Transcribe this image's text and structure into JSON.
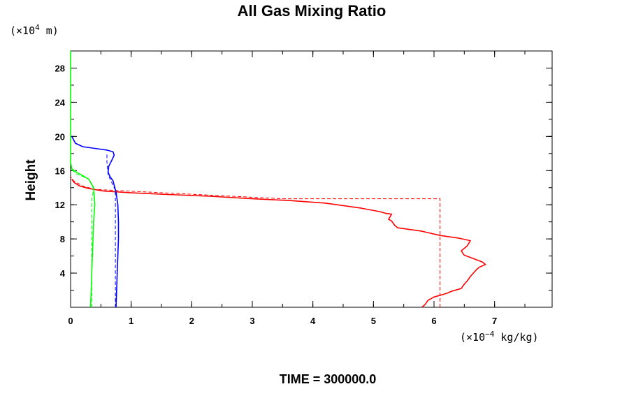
{
  "chart_data": {
    "type": "line",
    "title": "All Gas Mixing Ratio",
    "ylabel": "Height",
    "y_unit_prefix": "(×10",
    "y_unit_exp": "4",
    "y_unit_suffix": " m)",
    "x_unit_prefix": "(×10",
    "x_unit_exp": "−4",
    "x_unit_suffix": " kg/kg)",
    "footer": "TIME = 300000.0",
    "xlim": [
      0,
      7.95
    ],
    "ylim": [
      0,
      30
    ],
    "x_ticks": [
      0,
      1,
      2,
      3,
      4,
      5,
      6,
      7
    ],
    "y_ticks": [
      4,
      8,
      12,
      16,
      20,
      24,
      28
    ],
    "y_minor_step": 2,
    "x_minor_step": 0.5,
    "series": [
      {
        "color": "#ff0000",
        "style": "solid",
        "x": [
          5.8,
          5.85,
          5.9,
          6.0,
          6.2,
          6.3,
          6.45,
          6.5,
          6.55,
          6.6,
          6.65,
          6.7,
          6.75,
          6.85,
          6.8,
          6.65,
          6.5,
          6.45,
          6.55,
          6.6,
          6.4,
          6.1,
          5.8,
          5.4,
          5.35,
          5.3,
          5.25,
          5.3,
          5.2,
          5.1,
          4.8,
          4.4,
          4.2,
          3.6,
          3.0,
          2.3,
          1.6,
          1.0,
          0.55,
          0.3,
          0.15,
          0.06,
          0.02
        ],
        "y": [
          0.0,
          0.3,
          0.8,
          1.2,
          1.6,
          1.9,
          2.2,
          2.7,
          3.1,
          3.6,
          4.0,
          4.4,
          4.7,
          5.0,
          5.3,
          5.7,
          6.1,
          6.6,
          7.2,
          7.8,
          8.1,
          8.4,
          8.9,
          9.3,
          9.6,
          10.1,
          10.3,
          10.9,
          11.0,
          11.2,
          11.6,
          12.0,
          12.2,
          12.5,
          12.7,
          13.0,
          13.2,
          13.4,
          13.6,
          13.9,
          14.2,
          14.6,
          15.0
        ]
      },
      {
        "color": "#ff0000",
        "style": "dashed",
        "x": [
          6.1,
          6.1,
          3.5,
          0.4,
          0.2,
          0.05,
          0.0
        ],
        "y": [
          0.0,
          12.7,
          12.7,
          13.8,
          14.2,
          14.8,
          15.3
        ]
      },
      {
        "color": "#0000ff",
        "style": "solid",
        "x": [
          0.75,
          0.76,
          0.77,
          0.78,
          0.79,
          0.79,
          0.78,
          0.75,
          0.7,
          0.65,
          0.62,
          0.63,
          0.68,
          0.72,
          0.7,
          0.6,
          0.4,
          0.2,
          0.08,
          0.02
        ],
        "y": [
          0.0,
          2.0,
          4.0,
          6.0,
          8.0,
          10.0,
          12.0,
          13.5,
          14.8,
          15.3,
          15.8,
          16.5,
          17.2,
          17.8,
          18.2,
          18.4,
          18.6,
          18.8,
          19.2,
          20.0
        ]
      },
      {
        "color": "#0000ff",
        "style": "dashed",
        "x": [
          0.74,
          0.74,
          0.62,
          0.6,
          0.6
        ],
        "y": [
          0.0,
          13.7,
          15.5,
          17.0,
          18.0
        ]
      },
      {
        "color": "#00ff00",
        "style": "solid",
        "x": [
          0.33,
          0.34,
          0.35,
          0.36,
          0.37,
          0.38,
          0.4,
          0.38,
          0.3,
          0.2,
          0.1,
          0.02,
          0.0,
          0.0
        ],
        "y": [
          0.0,
          2.0,
          4.0,
          6.0,
          8.0,
          10.0,
          12.0,
          14.0,
          15.0,
          15.4,
          15.8,
          16.2,
          17.0,
          30.0
        ]
      },
      {
        "color": "#00ff00",
        "style": "dashed",
        "x": [
          0.35,
          0.35,
          0.38,
          0.3,
          0.1,
          0.0
        ],
        "y": [
          0.0,
          12.5,
          13.9,
          15.0,
          15.6,
          16.2
        ]
      }
    ]
  }
}
